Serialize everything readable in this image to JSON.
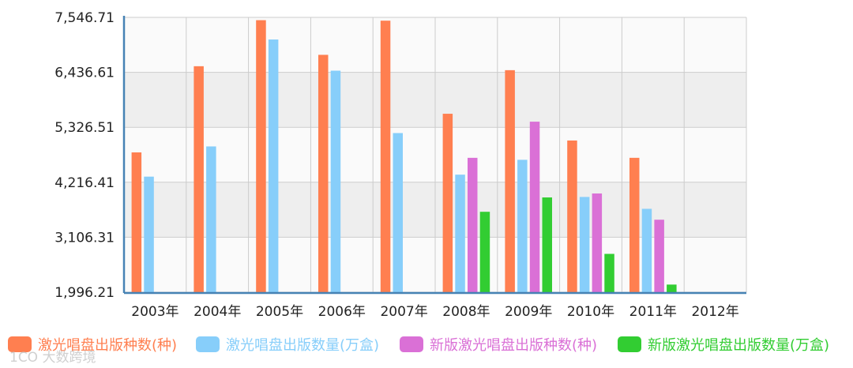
{
  "chart_data": {
    "type": "bar",
    "categories": [
      "2003年",
      "2004年",
      "2005年",
      "2006年",
      "2007年",
      "2008年",
      "2009年",
      "2010年",
      "2011年",
      "2012年"
    ],
    "y_ticks": [
      "1,996.21",
      "3,106.31",
      "4,216.41",
      "5,326.51",
      "6,436.61",
      "7,546.71"
    ],
    "ylim": [
      1996.21,
      7546.71
    ],
    "grid": true,
    "legend_position": "bottom",
    "series": [
      {
        "name": "激光唱盘出版种数(种)",
        "color": "#ff7f50",
        "values": [
          4820,
          6560,
          7490,
          6790,
          7480,
          5600,
          6480,
          5060,
          4710,
          null
        ]
      },
      {
        "name": "激光唱盘出版数量(万盒)",
        "color": "#87cefa",
        "values": [
          4330,
          4940,
          7100,
          6470,
          5210,
          4370,
          4670,
          3920,
          3680,
          null
        ]
      },
      {
        "name": "新版激光唱盘出版种数(种)",
        "color": "#da70d6",
        "values": [
          null,
          null,
          null,
          null,
          null,
          4710,
          5440,
          3990,
          3460,
          null
        ]
      },
      {
        "name": "新版激光唱盘出版数量(万盒)",
        "color": "#32cd32",
        "values": [
          null,
          null,
          null,
          null,
          null,
          3620,
          3910,
          2770,
          2150,
          null
        ]
      }
    ]
  },
  "watermark": "1CO 大数跨境"
}
